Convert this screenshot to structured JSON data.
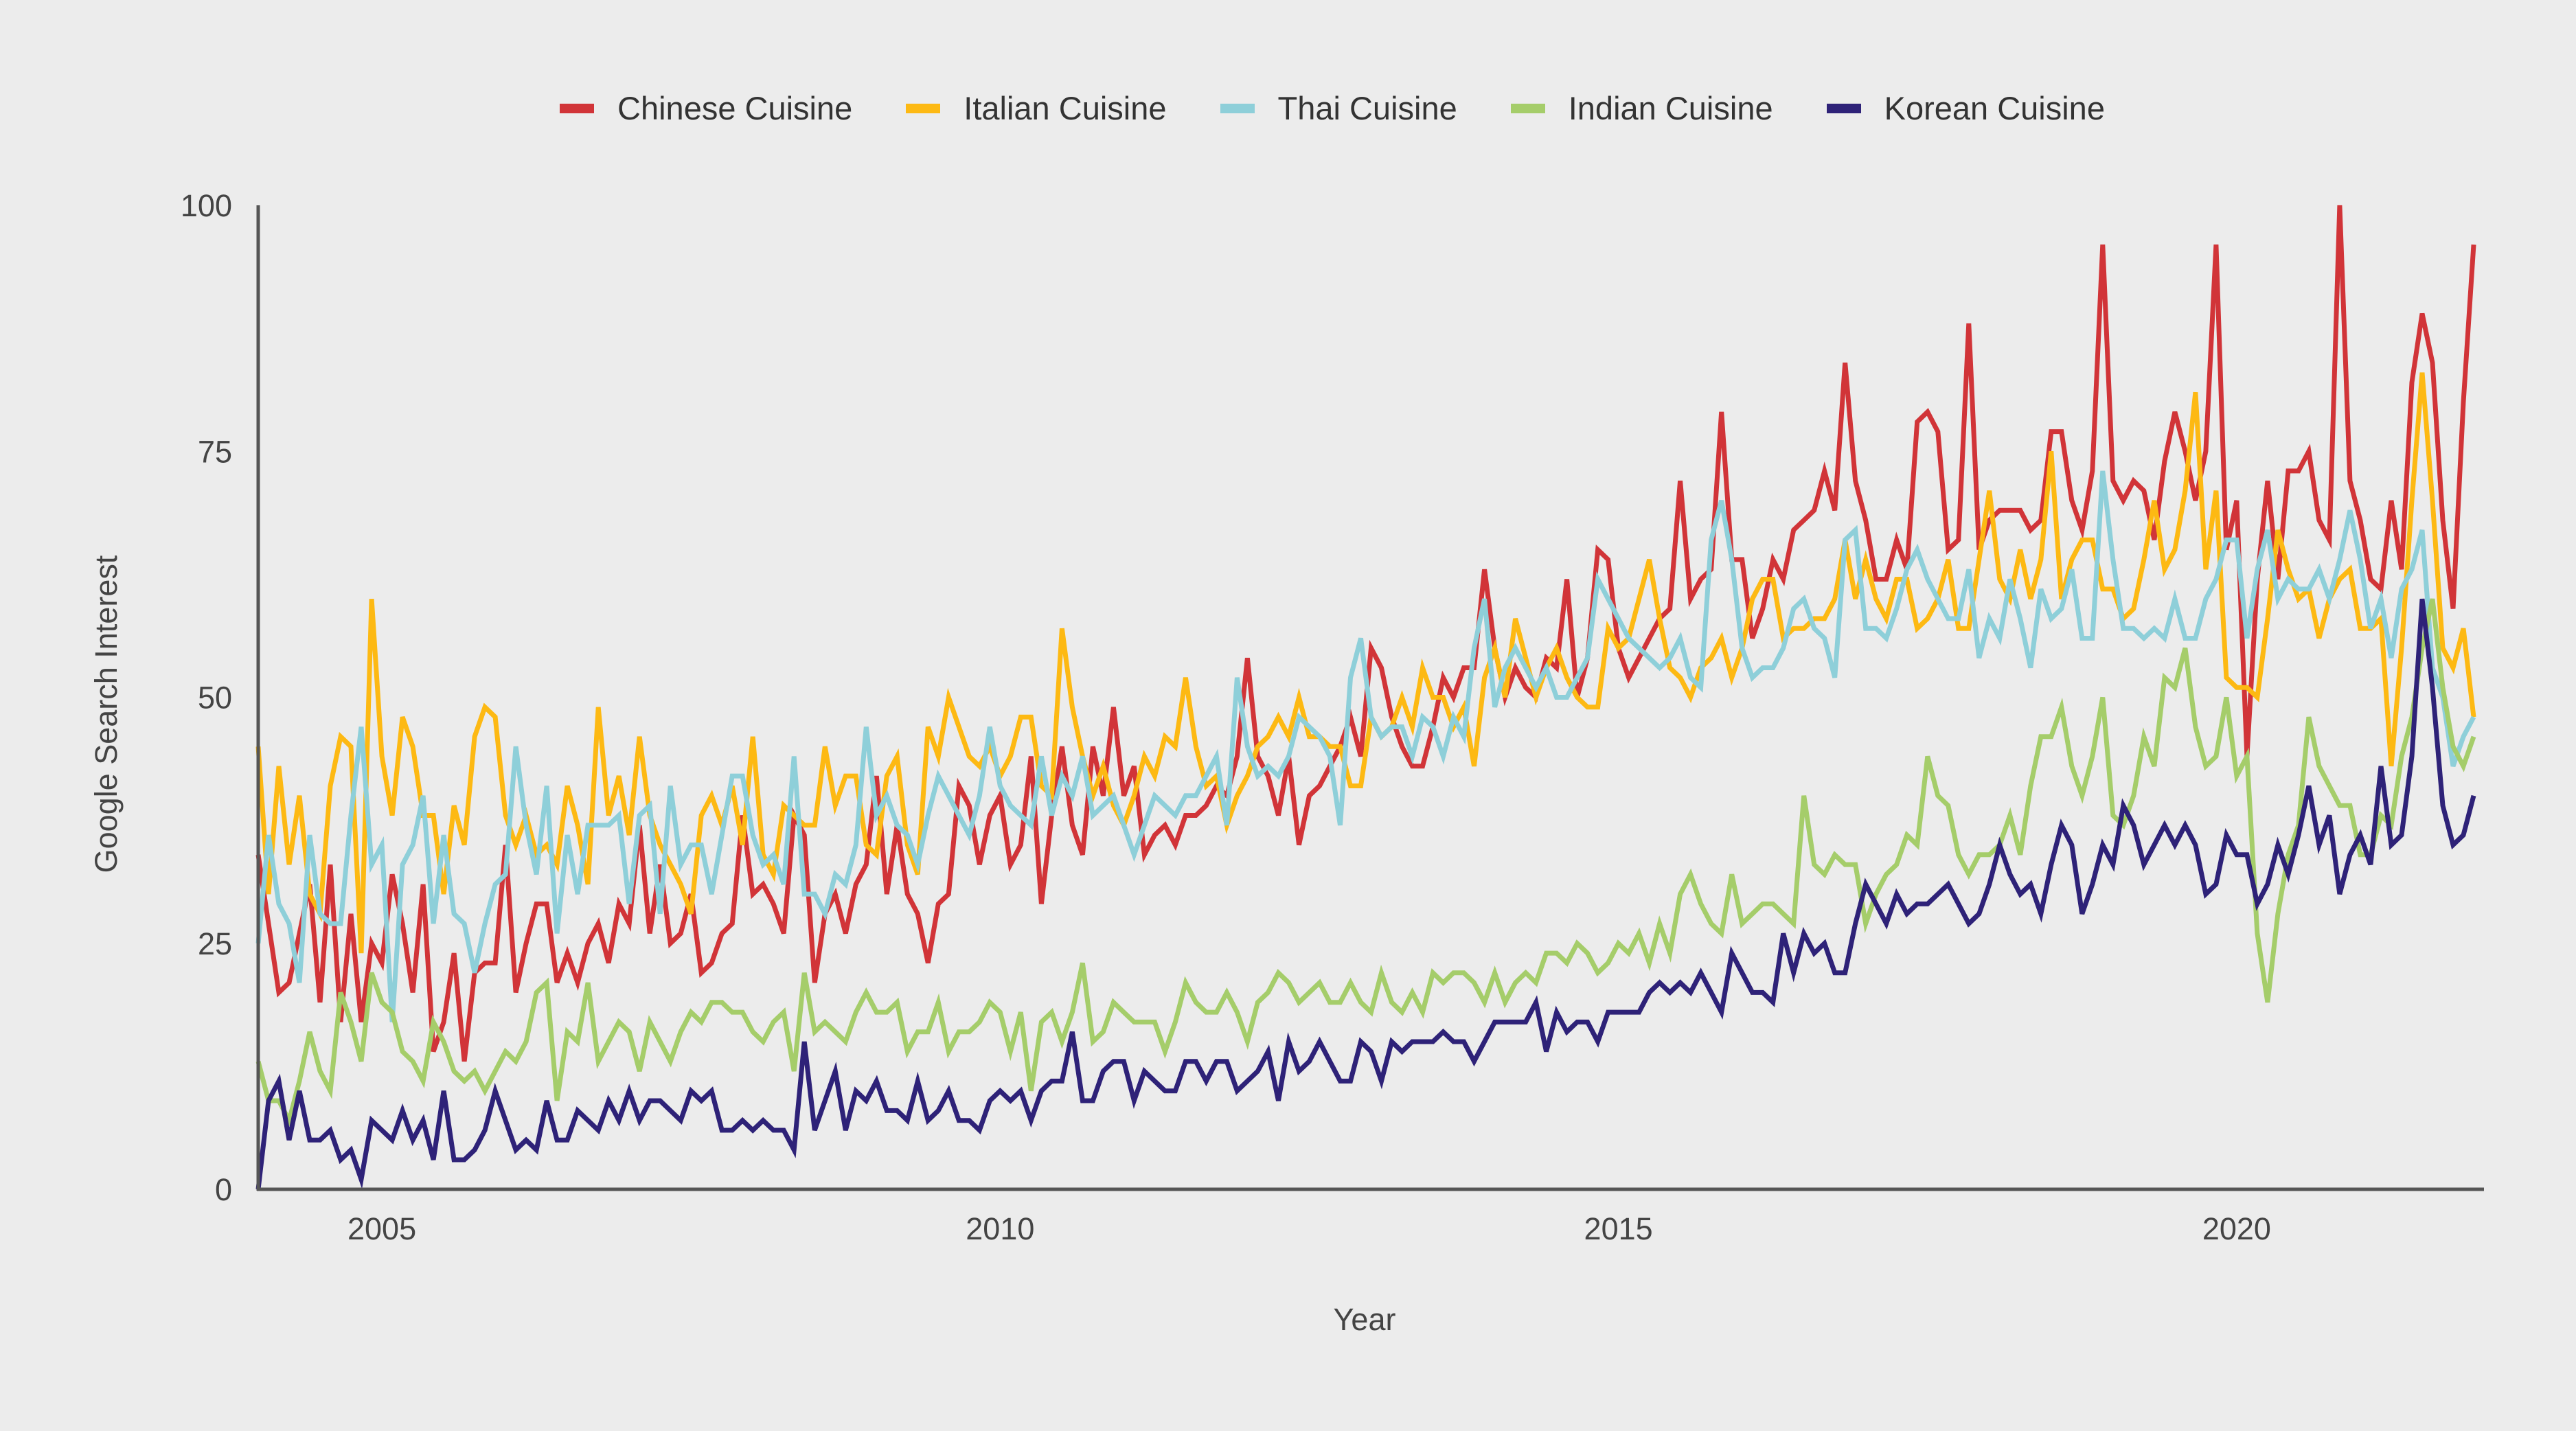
{
  "chart_data": {
    "type": "line",
    "title": "",
    "xlabel": "Year",
    "ylabel": "Google Search Interest",
    "x_start": "2004-01",
    "x_end": "2021-12",
    "x_frequency": "monthly",
    "xlim": [
      "2004-01",
      "2021-12"
    ],
    "ylim": [
      0,
      100
    ],
    "x_ticks": [
      "2005",
      "2010",
      "2015",
      "2020"
    ],
    "y_ticks": [
      "0",
      "25",
      "50",
      "75",
      "100"
    ],
    "grid": false,
    "legend_position": "top",
    "series": [
      {
        "name": "Chinese Cuisine",
        "color": "#d13438",
        "values": [
          34,
          27,
          20,
          21,
          26,
          31,
          19,
          33,
          17,
          28,
          17,
          25,
          23,
          32,
          27,
          20,
          31,
          14,
          17,
          24,
          13,
          22,
          23,
          23,
          35,
          20,
          25,
          29,
          29,
          21,
          24,
          21,
          25,
          27,
          23,
          29,
          27,
          37,
          26,
          33,
          25,
          26,
          30,
          22,
          23,
          26,
          27,
          38,
          30,
          31,
          29,
          26,
          38,
          36,
          21,
          28,
          30,
          26,
          31,
          33,
          42,
          30,
          37,
          30,
          28,
          23,
          29,
          30,
          41,
          39,
          33,
          38,
          40,
          33,
          35,
          44,
          29,
          38,
          45,
          37,
          34,
          45,
          40,
          49,
          40,
          43,
          34,
          36,
          37,
          35,
          38,
          38,
          39,
          41,
          40,
          44,
          54,
          44,
          42,
          38,
          44,
          35,
          40,
          41,
          43,
          45,
          48,
          44,
          55,
          53,
          48,
          45,
          43,
          43,
          47,
          52,
          50,
          53,
          53,
          63,
          55,
          50,
          53,
          51,
          50,
          54,
          53,
          62,
          50,
          54,
          65,
          64,
          55,
          52,
          54,
          56,
          58,
          59,
          72,
          60,
          62,
          63,
          79,
          64,
          64,
          56,
          59,
          64,
          62,
          67,
          68,
          69,
          73,
          69,
          84,
          72,
          68,
          62,
          62,
          66,
          63,
          78,
          79,
          77,
          65,
          66,
          88,
          65,
          68,
          69,
          69,
          69,
          67,
          68,
          77,
          77,
          70,
          67,
          73,
          96,
          72,
          70,
          72,
          71,
          66,
          74,
          79,
          75,
          70,
          75,
          96,
          65,
          70,
          44,
          62,
          72,
          62,
          73,
          73,
          75,
          68,
          66,
          100,
          72,
          68,
          62,
          61,
          70,
          63,
          82,
          89,
          84,
          68,
          59,
          80,
          96
        ]
      },
      {
        "name": "Italian Cuisine",
        "color": "#fdb913",
        "values": [
          45,
          30,
          43,
          33,
          40,
          30,
          28,
          41,
          46,
          45,
          24,
          60,
          44,
          38,
          48,
          45,
          38,
          38,
          30,
          39,
          35,
          46,
          49,
          48,
          38,
          35,
          38,
          34,
          35,
          33,
          41,
          37,
          31,
          49,
          38,
          42,
          36,
          46,
          38,
          35,
          33,
          31,
          28,
          38,
          40,
          37,
          41,
          35,
          46,
          34,
          32,
          39,
          38,
          37,
          37,
          45,
          39,
          42,
          42,
          35,
          34,
          42,
          44,
          35,
          32,
          47,
          44,
          50,
          47,
          44,
          43,
          45,
          42,
          44,
          48,
          48,
          41,
          40,
          57,
          49,
          44,
          40,
          43,
          39,
          37,
          40,
          44,
          42,
          46,
          45,
          52,
          45,
          41,
          42,
          37,
          40,
          42,
          45,
          46,
          48,
          46,
          50,
          46,
          46,
          45,
          45,
          41,
          41,
          48,
          46,
          47,
          50,
          47,
          53,
          50,
          50,
          47,
          49,
          43,
          52,
          55,
          50,
          58,
          54,
          50,
          53,
          55,
          52,
          50,
          49,
          49,
          57,
          55,
          56,
          60,
          64,
          58,
          53,
          52,
          50,
          53,
          54,
          56,
          52,
          55,
          60,
          62,
          62,
          56,
          57,
          57,
          58,
          58,
          60,
          66,
          60,
          64,
          60,
          58,
          62,
          62,
          57,
          58,
          60,
          64,
          57,
          57,
          64,
          71,
          62,
          60,
          65,
          60,
          64,
          75,
          60,
          64,
          66,
          66,
          61,
          61,
          58,
          59,
          64,
          70,
          63,
          65,
          71,
          81,
          63,
          71,
          52,
          51,
          51,
          50,
          58,
          67,
          63,
          60,
          61,
          56,
          60,
          62,
          63,
          57,
          57,
          58,
          43,
          55,
          70,
          83,
          70,
          55,
          53,
          57,
          48
        ]
      },
      {
        "name": "Thai Cuisine",
        "color": "#8ecfd9",
        "values": [
          25,
          36,
          29,
          27,
          21,
          36,
          28,
          27,
          27,
          38,
          47,
          33,
          35,
          17,
          33,
          35,
          40,
          27,
          36,
          28,
          27,
          22,
          27,
          31,
          32,
          45,
          37,
          32,
          41,
          26,
          36,
          30,
          37,
          37,
          37,
          38,
          29,
          38,
          39,
          28,
          41,
          33,
          35,
          35,
          30,
          36,
          42,
          42,
          36,
          33,
          34,
          31,
          44,
          30,
          30,
          28,
          32,
          31,
          35,
          47,
          38,
          40,
          37,
          36,
          33,
          38,
          42,
          40,
          38,
          36,
          40,
          47,
          41,
          39,
          38,
          37,
          44,
          38,
          42,
          40,
          44,
          38,
          39,
          40,
          37,
          34,
          37,
          40,
          39,
          38,
          40,
          40,
          42,
          44,
          37,
          52,
          45,
          42,
          43,
          42,
          44,
          48,
          47,
          46,
          44,
          37,
          52,
          56,
          48,
          46,
          47,
          47,
          44,
          48,
          47,
          44,
          48,
          46,
          55,
          60,
          49,
          53,
          55,
          53,
          51,
          53,
          50,
          50,
          52,
          54,
          62,
          60,
          58,
          56,
          55,
          54,
          53,
          54,
          56,
          52,
          51,
          66,
          70,
          64,
          55,
          52,
          53,
          53,
          55,
          59,
          60,
          57,
          56,
          52,
          66,
          67,
          57,
          57,
          56,
          59,
          63,
          65,
          62,
          60,
          58,
          58,
          63,
          54,
          58,
          56,
          62,
          58,
          53,
          61,
          58,
          59,
          63,
          56,
          56,
          73,
          64,
          57,
          57,
          56,
          57,
          56,
          60,
          56,
          56,
          60,
          62,
          66,
          66,
          56,
          63,
          67,
          60,
          62,
          61,
          61,
          63,
          60,
          64,
          69,
          64,
          57,
          60,
          54,
          61,
          63,
          67,
          53,
          50,
          43,
          46,
          48
        ]
      },
      {
        "name": "Indian Cuisine",
        "color": "#a5cd6a",
        "values": [
          13,
          9,
          9,
          7,
          11,
          16,
          12,
          10,
          20,
          17,
          13,
          22,
          19,
          18,
          14,
          13,
          11,
          17,
          15,
          12,
          11,
          12,
          10,
          12,
          14,
          13,
          15,
          20,
          21,
          9,
          16,
          15,
          21,
          13,
          15,
          17,
          16,
          12,
          17,
          15,
          13,
          16,
          18,
          17,
          19,
          19,
          18,
          18,
          16,
          15,
          17,
          18,
          12,
          22,
          16,
          17,
          16,
          15,
          18,
          20,
          18,
          18,
          19,
          14,
          16,
          16,
          19,
          14,
          16,
          16,
          17,
          19,
          18,
          14,
          18,
          10,
          17,
          18,
          15,
          18,
          23,
          15,
          16,
          19,
          18,
          17,
          17,
          17,
          14,
          17,
          21,
          19,
          18,
          18,
          20,
          18,
          15,
          19,
          20,
          22,
          21,
          19,
          20,
          21,
          19,
          19,
          21,
          19,
          18,
          22,
          19,
          18,
          20,
          18,
          22,
          21,
          22,
          22,
          21,
          19,
          22,
          19,
          21,
          22,
          21,
          24,
          24,
          23,
          25,
          24,
          22,
          23,
          25,
          24,
          26,
          23,
          27,
          24,
          30,
          32,
          29,
          27,
          26,
          32,
          27,
          28,
          29,
          29,
          28,
          27,
          40,
          33,
          32,
          34,
          33,
          33,
          27,
          30,
          32,
          33,
          36,
          35,
          44,
          40,
          39,
          34,
          32,
          34,
          34,
          35,
          38,
          34,
          41,
          46,
          46,
          49,
          43,
          40,
          44,
          50,
          38,
          37,
          40,
          46,
          43,
          52,
          51,
          55,
          47,
          43,
          44,
          50,
          42,
          44,
          26,
          19,
          28,
          34,
          37,
          48,
          43,
          41,
          39,
          39,
          34,
          34,
          38,
          37,
          44,
          48,
          55,
          60,
          51,
          45,
          43,
          46
        ]
      },
      {
        "name": "Korean Cuisine",
        "color": "#2e2278",
        "values": [
          0,
          9,
          11,
          5,
          10,
          5,
          5,
          6,
          3,
          4,
          1,
          7,
          6,
          5,
          8,
          5,
          7,
          3,
          10,
          3,
          3,
          4,
          6,
          10,
          7,
          4,
          5,
          4,
          9,
          5,
          5,
          8,
          7,
          6,
          9,
          7,
          10,
          7,
          9,
          9,
          8,
          7,
          10,
          9,
          10,
          6,
          6,
          7,
          6,
          7,
          6,
          6,
          4,
          15,
          6,
          9,
          12,
          6,
          10,
          9,
          11,
          8,
          8,
          7,
          11,
          7,
          8,
          10,
          7,
          7,
          6,
          9,
          10,
          9,
          10,
          7,
          10,
          11,
          11,
          16,
          9,
          9,
          12,
          13,
          13,
          9,
          12,
          11,
          10,
          10,
          13,
          13,
          11,
          13,
          13,
          10,
          11,
          12,
          14,
          9,
          15,
          12,
          13,
          15,
          13,
          11,
          11,
          15,
          14,
          11,
          15,
          14,
          15,
          15,
          15,
          16,
          15,
          15,
          13,
          15,
          17,
          17,
          17,
          17,
          19,
          14,
          18,
          16,
          17,
          17,
          15,
          18,
          18,
          18,
          18,
          20,
          21,
          20,
          21,
          20,
          22,
          20,
          18,
          24,
          22,
          20,
          20,
          19,
          26,
          22,
          26,
          24,
          25,
          22,
          22,
          27,
          31,
          29,
          27,
          30,
          28,
          29,
          29,
          30,
          31,
          29,
          27,
          28,
          31,
          35,
          32,
          30,
          31,
          28,
          33,
          37,
          35,
          28,
          31,
          35,
          33,
          39,
          37,
          33,
          35,
          37,
          35,
          37,
          35,
          30,
          31,
          36,
          34,
          34,
          29,
          31,
          35,
          32,
          36,
          41,
          35,
          38,
          30,
          34,
          36,
          33,
          43,
          35,
          36,
          44,
          60,
          51,
          39,
          35,
          36,
          40
        ]
      }
    ]
  }
}
